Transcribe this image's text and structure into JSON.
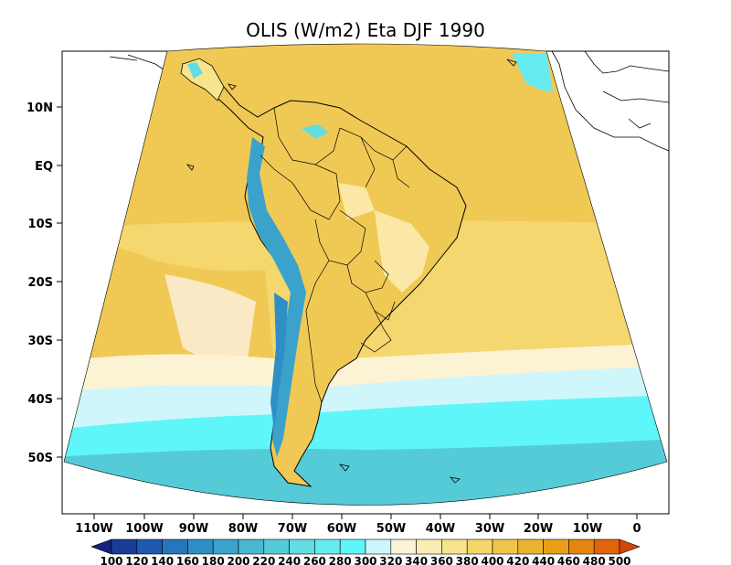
{
  "title": "OLIS (W/m2) Eta DJF 1990",
  "lat_labels": [
    "10N",
    "EQ",
    "10S",
    "20S",
    "30S",
    "40S",
    "50S"
  ],
  "lon_labels": [
    "110W",
    "100W",
    "90W",
    "80W",
    "70W",
    "60W",
    "50W",
    "40W",
    "30W",
    "20W",
    "10W",
    "0"
  ],
  "colorbar": {
    "ticks": [
      "100",
      "120",
      "140",
      "160",
      "180",
      "200",
      "220",
      "240",
      "260",
      "280",
      "300",
      "320",
      "340",
      "360",
      "380",
      "400",
      "420",
      "440",
      "460",
      "480",
      "500"
    ],
    "colors": [
      "#13237e",
      "#1a3c98",
      "#1f5aaf",
      "#2576bd",
      "#2f8fc5",
      "#3ba3cb",
      "#49b8d1",
      "#56cbd8",
      "#61dde3",
      "#66ebef",
      "#5ff6fa",
      "#cff6fb",
      "#fbf3d6",
      "#fbeeb5",
      "#f7e48e",
      "#f3d667",
      "#efc64a",
      "#ebb430",
      "#e9a018",
      "#e6860f",
      "#e0640b",
      "#d5460a"
    ]
  },
  "map": {
    "projection": "lambert-conformal",
    "lon_range": [
      "117W",
      "0"
    ],
    "lat_range": [
      "60S",
      "16N"
    ],
    "colors": {
      "ocean_tropical": "#f0c955",
      "ocean_subtropical": "#f4d76e",
      "ocean_cream": "#fcf2d4",
      "ocean_light_cyan": "#cff6fb",
      "ocean_cyan": "#5ff6fa",
      "ocean_blue": "#56cbd8",
      "andes": "#3ba3cb",
      "land_light": "#fbe8a6"
    }
  }
}
